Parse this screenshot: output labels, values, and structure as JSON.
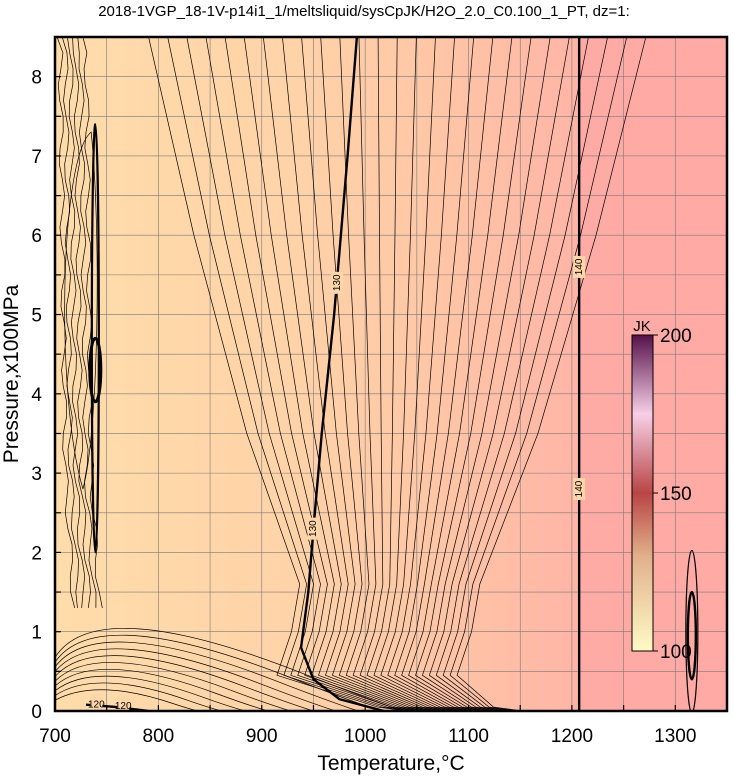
{
  "chart_data": {
    "type": "contour",
    "title": "2018-1VGP_18-1V-p14i1_1/meltsliquid/sysCpJK/H2O_2.0_C0.100_1_PT, dz=1:",
    "xlabel": "Temperature,°C",
    "ylabel": "Pressure,x100MPa",
    "xlim": [
      700,
      1350
    ],
    "ylim": [
      0,
      8.5
    ],
    "xticks": [
      "700",
      "800",
      "900",
      "1000",
      "1100",
      "1200",
      "1300"
    ],
    "yticks": [
      "0",
      "1",
      "2",
      "3",
      "4",
      "5",
      "6",
      "7",
      "8"
    ],
    "grid": true,
    "contour_interval": 1,
    "labeled_contours": [
      {
        "level": "120",
        "points": [
          [
            730,
            0.08
          ],
          [
            760,
            0.05
          ],
          [
            790,
            0.0
          ]
        ],
        "labels": [
          [
            740,
            0.08
          ],
          [
            766,
            0.06
          ]
        ]
      },
      {
        "level": "130",
        "points": [
          [
            1018,
            0.0
          ],
          [
            975,
            0.15
          ],
          [
            950,
            0.4
          ],
          [
            938,
            0.8
          ],
          [
            945,
            1.5
          ],
          [
            950,
            2.3
          ],
          [
            958,
            3.5
          ],
          [
            970,
            5.0
          ],
          [
            983,
            7.0
          ],
          [
            992,
            8.5
          ]
        ],
        "labels": [
          [
            950,
            2.3
          ],
          [
            973,
            5.4
          ]
        ]
      },
      {
        "level": "140",
        "points": [
          [
            1207,
            0.0
          ],
          [
            1207,
            8.5
          ]
        ],
        "labels": [
          [
            1207,
            2.8
          ],
          [
            1207,
            5.6
          ]
        ]
      }
    ],
    "colorbar": {
      "label": "JK",
      "min": 100,
      "max": 200,
      "ticks": [
        "100",
        "150",
        "200"
      ],
      "colors": [
        "#fefbc5",
        "#e2b08a",
        "#b84545",
        "#f7cfe6",
        "#55114a"
      ]
    },
    "background_colors": {
      "low": "#ffdcaa",
      "mid": "#ffcaa5",
      "high": "#ffaaa5"
    }
  }
}
